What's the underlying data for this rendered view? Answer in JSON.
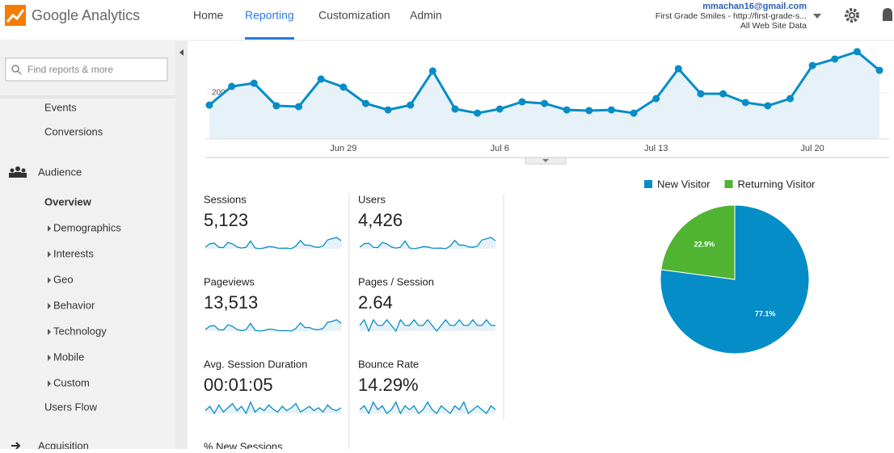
{
  "header": {
    "logo": "Google Analytics",
    "nav": [
      "Home",
      "Reporting",
      "Customization",
      "Admin"
    ],
    "account": {
      "email": "mmachan16@gmail.com",
      "property": "First Grade Smiles - http://first-grade-s...",
      "view": "All Web Site Data"
    }
  },
  "sidebar": {
    "search_placeholder": "Find reports & more",
    "items": [
      "Events",
      "Conversions",
      "Audience",
      "Overview",
      "Demographics",
      "Interests",
      "Geo",
      "Behavior",
      "Technology",
      "Mobile",
      "Custom",
      "Users Flow",
      "Acquisition"
    ]
  },
  "metrics": [
    {
      "label": "Sessions",
      "value": "5,123"
    },
    {
      "label": "Users",
      "value": "4,426",
      "sparkline": [
        127,
        196,
        208,
        124,
        120,
        224,
        194,
        132,
        108,
        127,
        254,
        112,
        96,
        112,
        138,
        132,
        108,
        106,
        108,
        96,
        150,
        262,
        169,
        169,
        136,
        124,
        150,
        274,
        298,
        326,
        256
      ]
    },
    {
      "label": "Pageviews",
      "value": "13,513",
      "sparkline": [
        390,
        600,
        640,
        380,
        370,
        690,
        590,
        400,
        330,
        390,
        780,
        350,
        300,
        340,
        420,
        400,
        330,
        320,
        330,
        300,
        460,
        800,
        520,
        520,
        410,
        380,
        460,
        840,
        900,
        1000,
        780
      ]
    },
    {
      "label": "Pages / Session",
      "value": "2.64",
      "sparkline": [
        2.6,
        2.7,
        2.5,
        2.7,
        2.6,
        2.6,
        2.7,
        2.6,
        2.5,
        2.7,
        2.6,
        2.6,
        2.7,
        2.6,
        2.6,
        2.7,
        2.6,
        2.5,
        2.6,
        2.7,
        2.6,
        2.6,
        2.7,
        2.6,
        2.6,
        2.7,
        2.6,
        2.6,
        2.7,
        2.6,
        2.6
      ]
    },
    {
      "label": "Avg. Session Duration",
      "value": "00:01:05",
      "sparkline": [
        60,
        75,
        50,
        80,
        55,
        70,
        85,
        60,
        75,
        50,
        90,
        55,
        70,
        60,
        80,
        65,
        55,
        75,
        60,
        70,
        85,
        55,
        65,
        75,
        60,
        70,
        55,
        80,
        65,
        60,
        70
      ]
    },
    {
      "label": "Bounce Rate",
      "value": "14.29%",
      "sparkline": [
        14,
        15,
        13,
        16,
        14,
        15,
        13,
        14,
        16,
        13,
        15,
        14,
        15,
        13,
        14,
        16,
        14,
        13,
        15,
        14,
        13,
        15,
        14,
        16,
        13,
        14,
        15,
        14,
        13,
        15,
        14
      ]
    },
    {
      "label": "% New Sessions"
    }
  ],
  "chart_data": [
    {
      "type": "line",
      "categories": [
        null,
        null,
        null,
        null,
        null,
        null,
        "Jun 29",
        null,
        null,
        null,
        null,
        null,
        null,
        "Jul 6",
        null,
        null,
        null,
        null,
        null,
        null,
        "Jul 13",
        null,
        null,
        null,
        null,
        null,
        null,
        "Jul 20",
        null,
        null,
        null
      ],
      "values": [
        147,
        228,
        242,
        144,
        140,
        260,
        225,
        154,
        126,
        147,
        295,
        130,
        112,
        130,
        161,
        154,
        126,
        123,
        126,
        112,
        175,
        305,
        196,
        196,
        158,
        144,
        175,
        319,
        347,
        379,
        298
      ],
      "color": "#058dc7",
      "ylim": [
        0,
        400
      ],
      "yticks": [
        200
      ],
      "grid": true
    },
    {
      "type": "pie",
      "categories": [
        "New Visitor",
        "Returning Visitor"
      ],
      "values": [
        77.1,
        22.9
      ],
      "value_labels": [
        "77.1%",
        "22.9%"
      ],
      "colors": [
        "#058dc7",
        "#50b432"
      ],
      "legend": "top"
    }
  ]
}
